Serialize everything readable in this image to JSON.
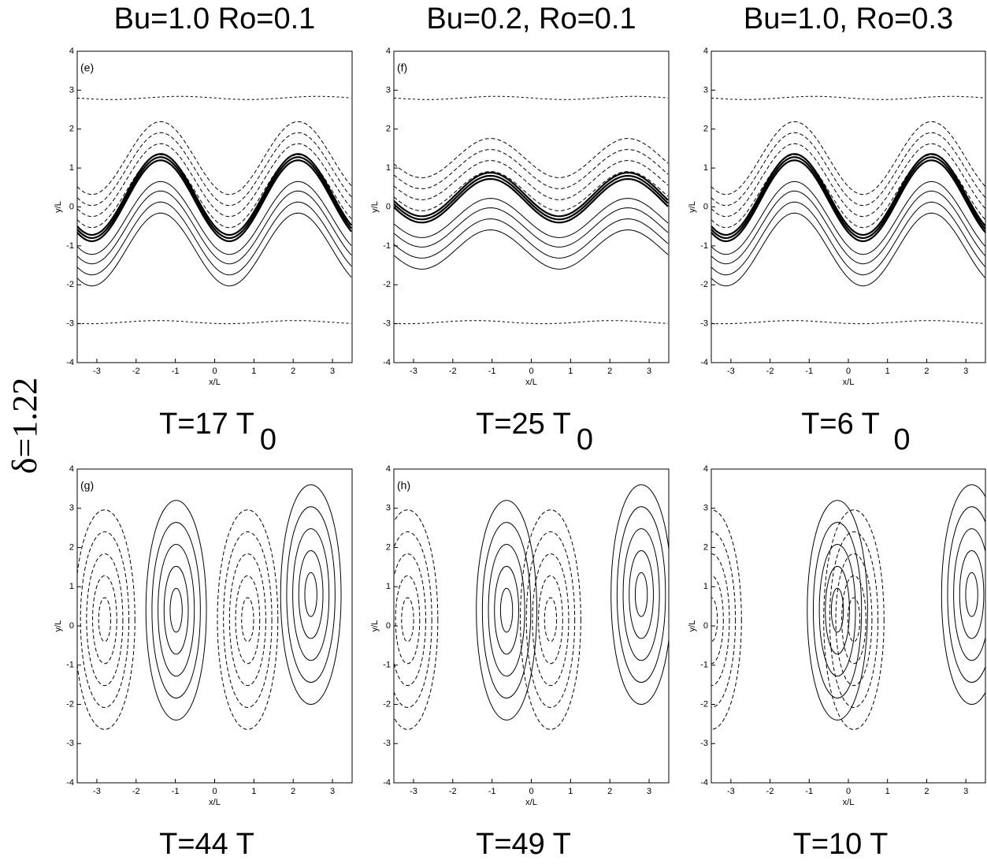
{
  "row_label": "δ=1.22",
  "column_titles": [
    "Bu=1.0 Ro=0.1",
    "Bu=0.2, Ro=0.1",
    "Bu=1.0, Ro=0.3"
  ],
  "chart_data": [
    {
      "type": "contour",
      "panel_label": "(e)",
      "time_label": "T=17 T",
      "time_subscript": "0",
      "xlabel": "x/L",
      "ylabel": "y/L",
      "xlim": [
        -3.5,
        3.5
      ],
      "ylim": [
        -4,
        4
      ],
      "xticks": [
        -3,
        -2,
        -1,
        0,
        1,
        2,
        3
      ],
      "yticks": [
        -4,
        -3,
        -2,
        -1,
        0,
        1,
        2,
        3,
        4
      ]
    },
    {
      "type": "contour",
      "panel_label": "(f)",
      "time_label": "T=25 T",
      "time_subscript": "0",
      "xlabel": "x/L",
      "ylabel": "y/L",
      "xlim": [
        -3.5,
        3.5
      ],
      "ylim": [
        -4,
        4
      ],
      "xticks": [
        -3,
        -2,
        -1,
        0,
        1,
        2,
        3
      ],
      "yticks": [
        -4,
        -3,
        -2,
        -1,
        0,
        1,
        2,
        3,
        4
      ]
    },
    {
      "type": "contour",
      "panel_label": "",
      "time_label": "T=6 T",
      "time_subscript": "0",
      "xlabel": "x/L",
      "ylabel": "y/L",
      "xlim": [
        -3.5,
        3.5
      ],
      "ylim": [
        -4,
        4
      ],
      "xticks": [
        -3,
        -2,
        -1,
        0,
        1,
        2,
        3
      ],
      "yticks": [
        -4,
        -3,
        -2,
        -1,
        0,
        1,
        2,
        3,
        4
      ]
    },
    {
      "type": "contour",
      "panel_label": "(g)",
      "time_label": "T=44 T",
      "xlabel": "x/L",
      "ylabel": "y/L",
      "xlim": [
        -3.5,
        3.5
      ],
      "ylim": [
        -4,
        4
      ],
      "xticks": [
        -3,
        -2,
        -1,
        0,
        1,
        2,
        3
      ],
      "yticks": [
        -4,
        -3,
        -2,
        -1,
        0,
        1,
        2,
        3,
        4
      ]
    },
    {
      "type": "contour",
      "panel_label": "(h)",
      "time_label": "T=49 T",
      "xlabel": "x/L",
      "ylabel": "y/L",
      "xlim": [
        -3.5,
        3.5
      ],
      "ylim": [
        -4,
        4
      ],
      "xticks": [
        -3,
        -2,
        -1,
        0,
        1,
        2,
        3
      ],
      "yticks": [
        -4,
        -3,
        -2,
        -1,
        0,
        1,
        2,
        3,
        4
      ]
    },
    {
      "type": "contour",
      "panel_label": "",
      "time_label": "T=10 T",
      "xlabel": "x/L",
      "ylabel": "y/L",
      "xlim": [
        -3.5,
        3.5
      ],
      "ylim": [
        -4,
        4
      ],
      "xticks": [
        -3,
        -2,
        -1,
        0,
        1,
        2,
        3
      ],
      "yticks": [
        -4,
        -3,
        -2,
        -1,
        0,
        1,
        2,
        3,
        4
      ]
    }
  ]
}
